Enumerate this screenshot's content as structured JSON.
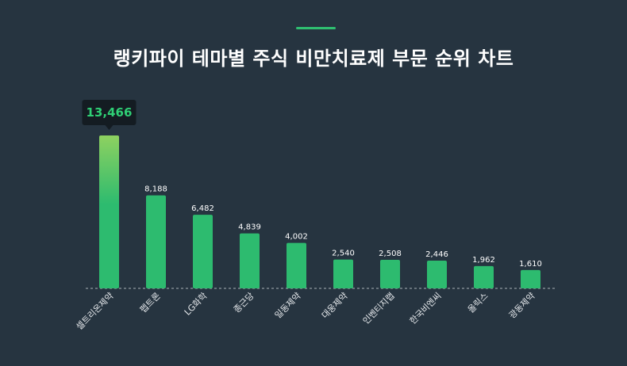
{
  "header": {
    "title": "랭키파이 테마별 주식 비만치료제 부문 순위 차트"
  },
  "colors": {
    "background": "#263440",
    "accent": "#2fbf71",
    "bar": "#2dbb6f",
    "bar_top_gradient": "#8ed160",
    "tooltip_bg": "#141c22",
    "tooltip_text": "#2fcf75"
  },
  "chart_data": {
    "type": "bar",
    "title": "랭키파이 테마별 주식 비만치료제 부문 순위 차트",
    "categories": [
      "셀트리온제약",
      "펩트론",
      "LG화학",
      "종근당",
      "일동제약",
      "대웅제약",
      "인벤티지랩",
      "한국비엔씨",
      "올릭스",
      "광동제약"
    ],
    "values": [
      13466,
      8188,
      6482,
      4839,
      4002,
      2540,
      2508,
      2446,
      1962,
      1610
    ],
    "value_labels": [
      "13,466",
      "8,188",
      "6,482",
      "4,839",
      "4,002",
      "2,540",
      "2,508",
      "2,446",
      "1,962",
      "1,610"
    ],
    "highlight_index": 0,
    "ylim": [
      0,
      13466
    ],
    "grid": false,
    "legend": "none"
  }
}
